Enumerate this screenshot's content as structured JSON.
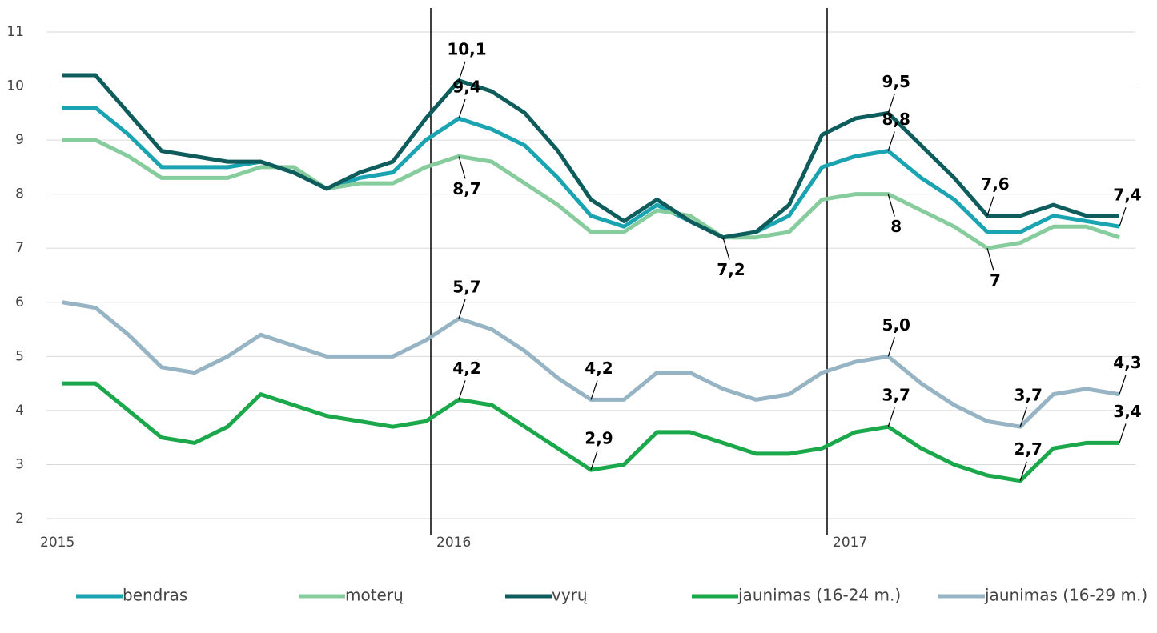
{
  "chart_data": {
    "type": "line",
    "categories": [
      "2015",
      null,
      null,
      null,
      null,
      null,
      null,
      null,
      null,
      null,
      null,
      null,
      "2016",
      null,
      null,
      null,
      null,
      null,
      null,
      null,
      null,
      null,
      null,
      null,
      "2017",
      null,
      null,
      null,
      null,
      null,
      null,
      null,
      null
    ],
    "series": [
      {
        "name": "bendras",
        "color": "#1aa3b0",
        "values": [
          9.6,
          9.6,
          9.1,
          8.5,
          8.5,
          8.5,
          8.6,
          8.4,
          8.1,
          8.3,
          8.4,
          9.0,
          9.4,
          9.2,
          8.9,
          8.3,
          7.6,
          7.4,
          7.8,
          7.5,
          7.2,
          7.3,
          7.6,
          8.5,
          8.7,
          8.8,
          8.3,
          7.9,
          7.3,
          7.3,
          7.6,
          7.5,
          7.4
        ],
        "value_labels": [
          null,
          null,
          null,
          null,
          null,
          null,
          null,
          null,
          null,
          null,
          null,
          null,
          "9,4",
          null,
          null,
          null,
          null,
          null,
          null,
          null,
          null,
          null,
          null,
          null,
          null,
          "8,8",
          null,
          null,
          null,
          null,
          null,
          null,
          "7,4"
        ]
      },
      {
        "name": "moterų",
        "color": "#86cc9c",
        "values": [
          9.0,
          9.0,
          8.7,
          8.3,
          8.3,
          8.3,
          8.5,
          8.5,
          8.1,
          8.2,
          8.2,
          8.5,
          8.7,
          8.6,
          8.2,
          7.8,
          7.3,
          7.3,
          7.7,
          7.6,
          7.2,
          7.2,
          7.3,
          7.9,
          8.0,
          8.0,
          7.7,
          7.4,
          7.0,
          7.1,
          7.4,
          7.4,
          7.2
        ],
        "value_labels": [
          null,
          null,
          null,
          null,
          null,
          null,
          null,
          null,
          null,
          null,
          null,
          null,
          "8,7",
          null,
          null,
          null,
          null,
          null,
          null,
          null,
          null,
          null,
          null,
          null,
          null,
          "8",
          null,
          null,
          "7",
          null,
          null,
          null,
          null
        ]
      },
      {
        "name": "vyrų",
        "color": "#0e5c5c",
        "values": [
          10.2,
          10.2,
          9.5,
          8.8,
          8.7,
          8.6,
          8.6,
          8.4,
          8.1,
          8.4,
          8.6,
          9.4,
          10.1,
          9.9,
          9.5,
          8.8,
          7.9,
          7.5,
          7.9,
          7.5,
          7.2,
          7.3,
          7.8,
          9.1,
          9.4,
          9.5,
          8.9,
          8.3,
          7.6,
          7.6,
          7.8,
          7.6,
          7.6
        ],
        "value_labels": [
          null,
          null,
          null,
          null,
          null,
          null,
          null,
          null,
          null,
          null,
          null,
          null,
          "10,1",
          null,
          null,
          null,
          null,
          null,
          null,
          null,
          "7,2",
          null,
          null,
          null,
          null,
          "9,5",
          null,
          null,
          "7,6",
          null,
          null,
          null,
          null
        ]
      },
      {
        "name": "jaunimas (16-24 m.)",
        "color": "#1aa84a",
        "values": [
          4.5,
          4.5,
          4.0,
          3.5,
          3.4,
          3.7,
          4.3,
          4.1,
          3.9,
          3.8,
          3.7,
          3.8,
          4.2,
          4.1,
          3.7,
          3.3,
          2.9,
          3.0,
          3.6,
          3.6,
          3.4,
          3.2,
          3.2,
          3.3,
          3.6,
          3.7,
          3.3,
          3.0,
          2.8,
          2.7,
          3.3,
          3.4,
          3.4
        ],
        "value_labels": [
          null,
          null,
          null,
          null,
          null,
          null,
          null,
          null,
          null,
          null,
          null,
          null,
          "4,2",
          null,
          null,
          null,
          "2,9",
          null,
          null,
          null,
          null,
          null,
          null,
          null,
          null,
          "3,7",
          null,
          null,
          null,
          "2,7",
          null,
          null,
          "3,4"
        ]
      },
      {
        "name": "jaunimas (16-29 m.)",
        "color": "#96b4c4",
        "values": [
          6.0,
          5.9,
          5.4,
          4.8,
          4.7,
          5.0,
          5.4,
          5.2,
          5.0,
          5.0,
          5.0,
          5.3,
          5.7,
          5.5,
          5.1,
          4.6,
          4.2,
          4.2,
          4.7,
          4.7,
          4.4,
          4.2,
          4.3,
          4.7,
          4.9,
          5.0,
          4.5,
          4.1,
          3.8,
          3.7,
          4.3,
          4.4,
          4.3
        ],
        "value_labels": [
          null,
          null,
          null,
          null,
          null,
          null,
          null,
          null,
          null,
          null,
          null,
          null,
          "5,7",
          null,
          null,
          null,
          "4,2",
          null,
          null,
          null,
          null,
          null,
          null,
          null,
          null,
          "5,0",
          null,
          null,
          null,
          "3,7",
          null,
          null,
          "4,3"
        ]
      }
    ],
    "ylim": [
      2,
      11
    ],
    "yticks": [
      2,
      3,
      4,
      5,
      6,
      7,
      8,
      9,
      10,
      11
    ],
    "grid": true,
    "legend": "bottom"
  }
}
